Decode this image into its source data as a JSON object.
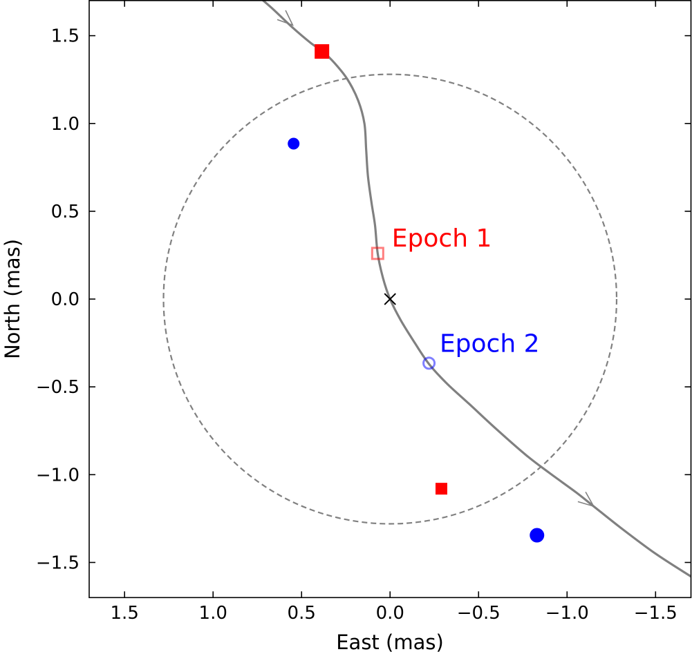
{
  "chart_data": {
    "type": "scatter",
    "xlabel": "East (mas)",
    "ylabel": "North (mas)",
    "xlim": [
      1.7,
      -1.7
    ],
    "ylim": [
      -1.7,
      1.7
    ],
    "x_reversed": true,
    "grid": false,
    "xticks": [
      {
        "value": 1.5,
        "label": "1.5"
      },
      {
        "value": 1.0,
        "label": "1.0"
      },
      {
        "value": 0.5,
        "label": "0.5"
      },
      {
        "value": 0.0,
        "label": "0.0"
      },
      {
        "value": -0.5,
        "label": "−0.5"
      },
      {
        "value": -1.0,
        "label": "−1.0"
      },
      {
        "value": -1.5,
        "label": "−1.5"
      }
    ],
    "yticks": [
      {
        "value": 1.5,
        "label": "1.5"
      },
      {
        "value": 1.0,
        "label": "1.0"
      },
      {
        "value": 0.5,
        "label": "0.5"
      },
      {
        "value": 0.0,
        "label": "0.0"
      },
      {
        "value": -0.5,
        "label": "−0.5"
      },
      {
        "value": -1.0,
        "label": "−1.0"
      },
      {
        "value": -1.5,
        "label": "−1.5"
      }
    ],
    "circle": {
      "center": [
        0,
        0
      ],
      "radius": 1.28,
      "color": "#808080",
      "style": "dashed"
    },
    "trajectory": {
      "color": "#808080",
      "points": [
        [
          0.74,
          1.72
        ],
        [
          0.66,
          1.65
        ],
        [
          0.555,
          1.55
        ],
        [
          0.45,
          1.46
        ],
        [
          0.38,
          1.41
        ],
        [
          0.31,
          1.34
        ],
        [
          0.24,
          1.25
        ],
        [
          0.18,
          1.13
        ],
        [
          0.145,
          1.0
        ],
        [
          0.135,
          0.85
        ],
        [
          0.125,
          0.7
        ],
        [
          0.105,
          0.55
        ],
        [
          0.085,
          0.42
        ],
        [
          0.07,
          0.26
        ],
        [
          0.04,
          0.12
        ],
        [
          0.0,
          0.0
        ],
        [
          -0.06,
          -0.12
        ],
        [
          -0.14,
          -0.25
        ],
        [
          -0.22,
          -0.37
        ],
        [
          -0.32,
          -0.48
        ],
        [
          -0.45,
          -0.6
        ],
        [
          -0.6,
          -0.74
        ],
        [
          -0.77,
          -0.89
        ],
        [
          -0.9,
          -0.99
        ],
        [
          -1.05,
          -1.1
        ],
        [
          -1.15,
          -1.18
        ],
        [
          -1.3,
          -1.3
        ],
        [
          -1.5,
          -1.45
        ],
        [
          -1.7,
          -1.58
        ]
      ],
      "arrows": [
        {
          "at": [
            0.55,
            1.56
          ],
          "direction": "downstream"
        },
        {
          "at": [
            -1.15,
            -1.18
          ],
          "direction": "downstream"
        }
      ]
    },
    "series": [
      {
        "name": "Epoch 1",
        "marker": "square",
        "color": "#ff0000",
        "points": [
          {
            "x": 0.385,
            "y": 1.41,
            "size": 20,
            "filled": true
          },
          {
            "x": -0.29,
            "y": -1.08,
            "size": 16,
            "filled": true
          },
          {
            "x": 0.07,
            "y": 0.26,
            "size": 16,
            "filled": false
          }
        ]
      },
      {
        "name": "Epoch 2",
        "marker": "circle",
        "color": "#0000ff",
        "points": [
          {
            "x": 0.545,
            "y": 0.885,
            "size": 16,
            "filled": true
          },
          {
            "x": -0.83,
            "y": -1.345,
            "size": 20,
            "filled": true
          },
          {
            "x": -0.22,
            "y": -0.365,
            "size": 16,
            "filled": false
          }
        ]
      }
    ],
    "center_marker": {
      "x": 0,
      "y": 0,
      "symbol": "x",
      "color": "#000000"
    },
    "annotations": [
      {
        "text": "Epoch 1",
        "x": -0.01,
        "y": 0.3,
        "color": "#ff0000"
      },
      {
        "text": "Epoch 2",
        "x": -0.28,
        "y": -0.3,
        "color": "#0000ff"
      }
    ]
  }
}
